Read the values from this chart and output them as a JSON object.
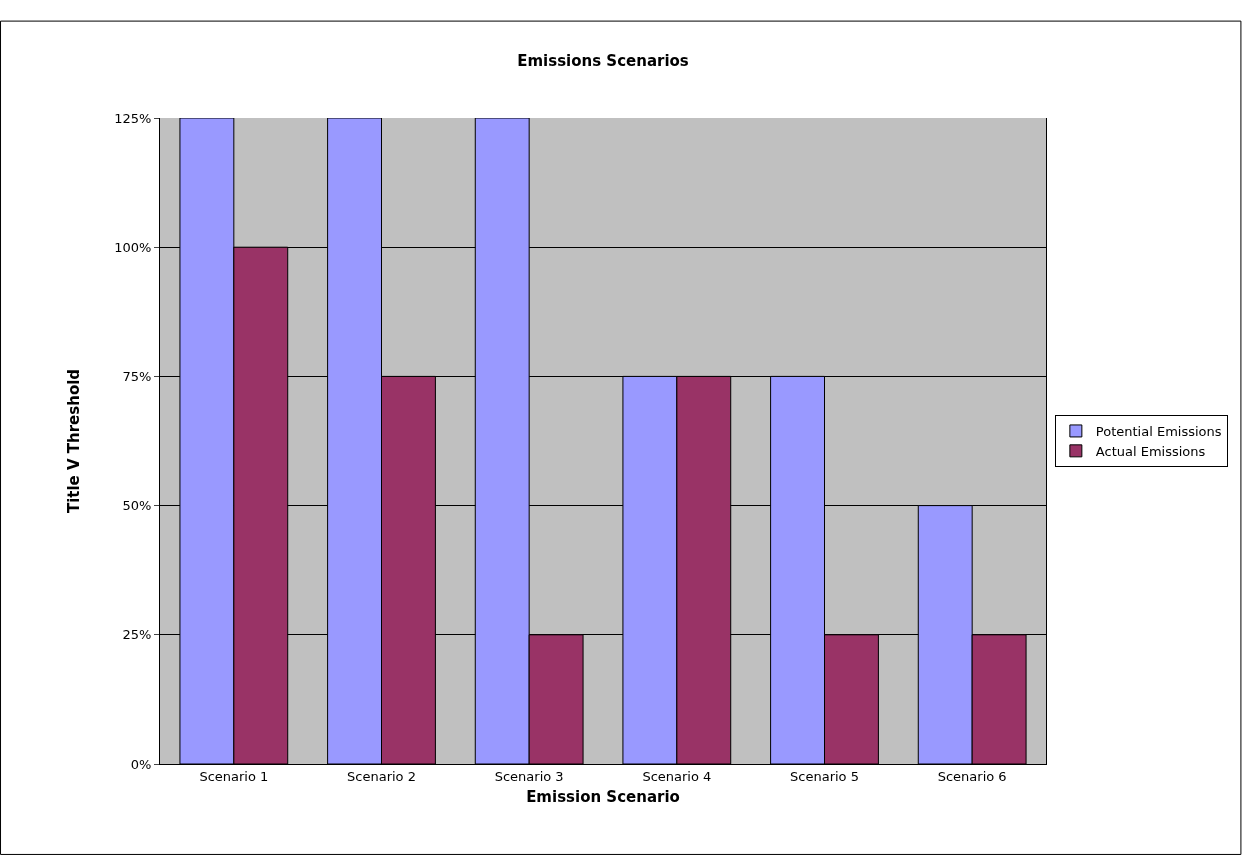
{
  "chart_data": {
    "type": "bar",
    "title": "Emissions Scenarios",
    "xlabel": "Emission Scenario",
    "ylabel": "Title V Threshold",
    "categories": [
      "Scenario 1",
      "Scenario 2",
      "Scenario 3",
      "Scenario 4",
      "Scenario 5",
      "Scenario 6"
    ],
    "series": [
      {
        "name": "Potential Emissions",
        "color": "#9999ff",
        "values": [
          125,
          125,
          125,
          75,
          75,
          50
        ]
      },
      {
        "name": "Actual Emissions",
        "color": "#993366",
        "values": [
          100,
          75,
          25,
          75,
          25,
          25
        ]
      }
    ],
    "ylim": [
      0,
      125
    ],
    "yticks": [
      {
        "value": 0,
        "label": "0%"
      },
      {
        "value": 25,
        "label": "25%"
      },
      {
        "value": 50,
        "label": "50%"
      },
      {
        "value": 75,
        "label": "75%"
      },
      {
        "value": 100,
        "label": "100%"
      },
      {
        "value": 125,
        "label": "125%"
      }
    ],
    "grid": "y",
    "legend": "right"
  }
}
